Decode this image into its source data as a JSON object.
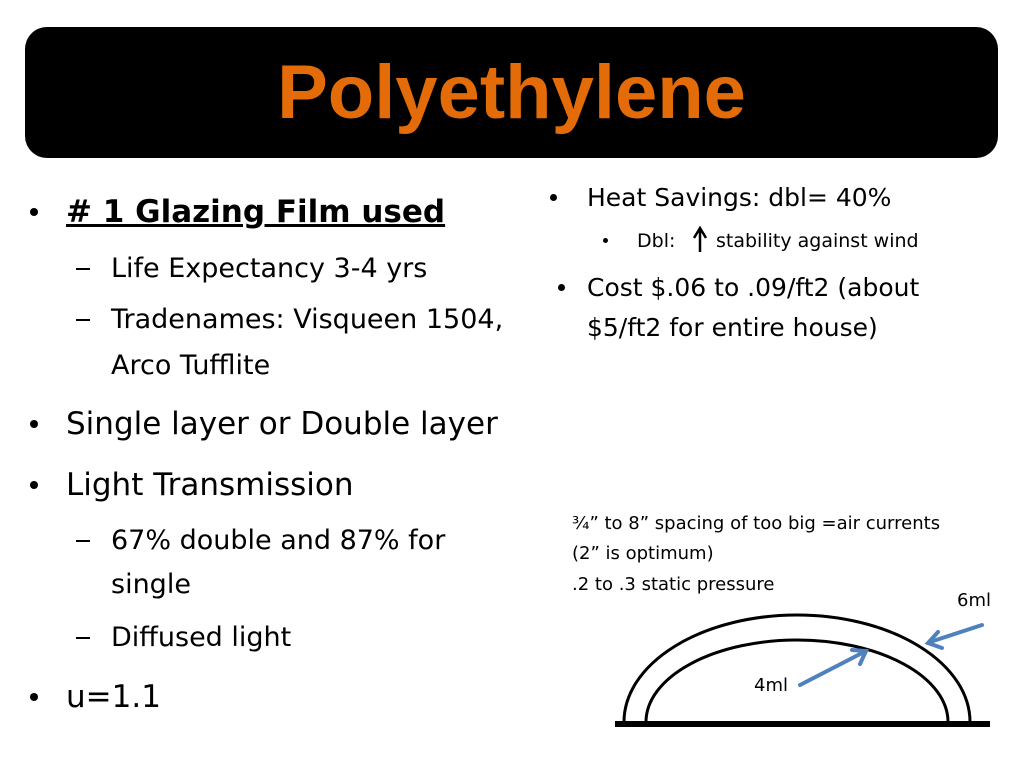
{
  "title": "Polyethylene",
  "left_bullets": [
    {
      "text": "# 1 Glazing Film used",
      "sub": [
        "Life Expectancy 3-4 yrs",
        "Tradenames: Visqueen 1504, Arco Tufflite"
      ]
    },
    {
      "text": "Single layer or Double layer"
    },
    {
      "text": "Light Transmission",
      "sub": [
        "67% double and  87% for single",
        "Diffused light"
      ]
    },
    {
      "text": "u=1.1"
    }
  ],
  "right_bullets": [
    {
      "text": "Heat Savings: dbl= 40%",
      "sub": [
        {
          "before": "Dbl:",
          "after": "stability against wind"
        }
      ]
    },
    {
      "text": "Cost $.06 to .09/ft2 (about $5/ft2 for entire house)"
    }
  ],
  "diagram": {
    "notes": [
      "¾” to 8” spacing of  too big =air currents",
      "(2” is optimum)",
      ".2 to .3 static pressure"
    ],
    "outer_label": "6ml",
    "inner_label": "4ml"
  }
}
